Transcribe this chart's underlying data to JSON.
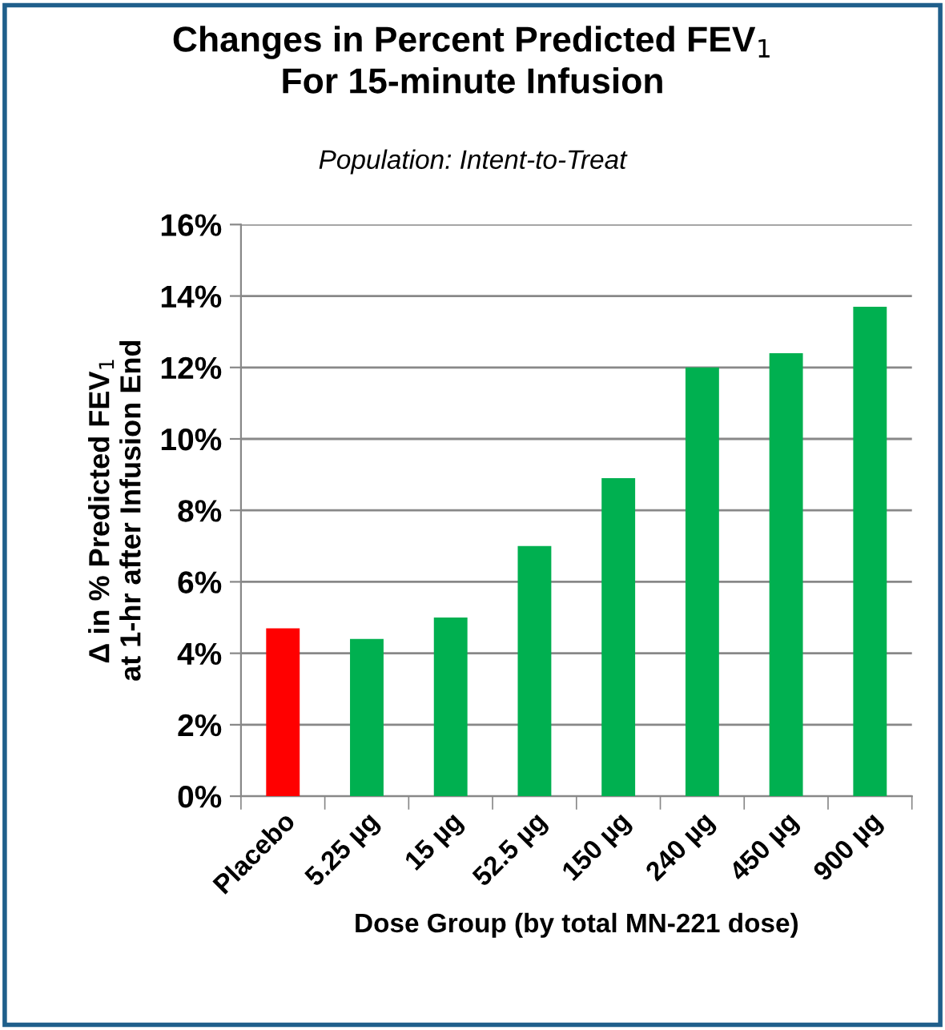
{
  "chart_data": {
    "type": "bar",
    "title": "Changes in Percent Predicted FEV$_{1}$\nFor 15-minute Infusion",
    "subtitle": "Population: Intent-to-Treat",
    "xlabel": "Dose Group (by total MN-221 dose)",
    "ylabel": "Δ in % Predicted FEV$_{1}$\nat 1-hr after Infusion End",
    "categories": [
      "Placebo",
      "5.25 µg",
      "15 µg",
      "52.5 µg",
      "150 µg",
      "240 µg",
      "450 µg",
      "900 µg"
    ],
    "values": [
      4.7,
      4.4,
      5.0,
      7.0,
      8.9,
      12.0,
      12.4,
      13.7
    ],
    "colors": [
      "#ff0000",
      "#00b050",
      "#00b050",
      "#00b050",
      "#00b050",
      "#00b050",
      "#00b050",
      "#00b050"
    ],
    "ylim": [
      0,
      16
    ],
    "yticks": [
      {
        "value": 0,
        "label": "0%"
      },
      {
        "value": 2,
        "label": "2%"
      },
      {
        "value": 4,
        "label": "4%"
      },
      {
        "value": 6,
        "label": "6%"
      },
      {
        "value": 8,
        "label": "8%"
      },
      {
        "value": 10,
        "label": "10%"
      },
      {
        "value": 12,
        "label": "12%"
      },
      {
        "value": 14,
        "label": "14%"
      },
      {
        "value": 16,
        "label": "16%"
      }
    ],
    "grid": "y",
    "legend": false
  }
}
